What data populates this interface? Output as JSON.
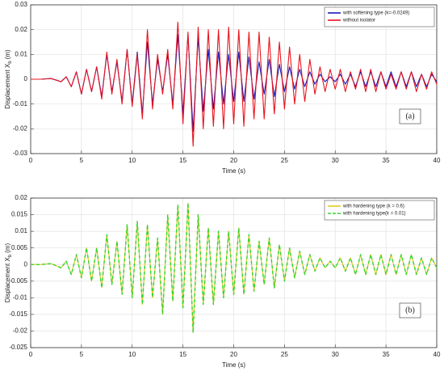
{
  "chart_data": [
    {
      "type": "line",
      "xlabel": "Time (s)",
      "ylabel": {
        "text": "Displacement X",
        "sub": "b",
        "unit": "(m)"
      },
      "annotation": "(a)",
      "xlim": [
        0,
        40
      ],
      "xticks": [
        0,
        5,
        10,
        15,
        20,
        25,
        30,
        35,
        40
      ],
      "ylim": [
        -0.03,
        0.03
      ],
      "yticks": [
        -0.03,
        -0.02,
        -0.01,
        0,
        0.01,
        0.02,
        0.03
      ],
      "grid": true,
      "legend": "upper right",
      "x": [
        0,
        1,
        2,
        3,
        3.5,
        4,
        4.5,
        5,
        5.5,
        6,
        6.5,
        7,
        7.5,
        8,
        8.5,
        9,
        9.5,
        10,
        10.5,
        11,
        11.5,
        12,
        12.5,
        13,
        13.5,
        14,
        14.5,
        15,
        15.5,
        16,
        16.5,
        17,
        17.5,
        18,
        18.5,
        19,
        19.5,
        20,
        20.5,
        21,
        21.5,
        22,
        22.5,
        23,
        23.5,
        24,
        24.5,
        25,
        25.5,
        26,
        26.5,
        27,
        27.5,
        28,
        28.5,
        29,
        29.5,
        30,
        30.5,
        31,
        31.5,
        32,
        32.5,
        33,
        33.5,
        34,
        34.5,
        35,
        35.5,
        36,
        36.5,
        37,
        37.5,
        38,
        38.5,
        39,
        39.5,
        40
      ],
      "series": [
        {
          "name": "with softening type (k=-0.0249)",
          "color": "#1a1ab8",
          "linestyle": "solid",
          "values": [
            0,
            0,
            0.0003,
            -0.001,
            0.001,
            -0.003,
            0.003,
            -0.006,
            0.004,
            -0.005,
            0.005,
            -0.007,
            0.01,
            -0.005,
            0.007,
            -0.009,
            0.012,
            -0.01,
            0.011,
            -0.014,
            0.015,
            -0.01,
            0.008,
            -0.005,
            0.01,
            -0.01,
            0.018,
            -0.014,
            0.018,
            -0.021,
            0.017,
            -0.013,
            0.012,
            -0.012,
            0.011,
            -0.01,
            0.01,
            -0.009,
            0.011,
            -0.009,
            0.009,
            -0.008,
            0.007,
            -0.006,
            0.008,
            -0.007,
            0.006,
            -0.005,
            0.005,
            -0.004,
            0.004,
            -0.003,
            0.003,
            -0.002,
            0.002,
            -0.001,
            0.001,
            -0.001,
            0.002,
            -0.002,
            0.002,
            -0.003,
            0.003,
            -0.003,
            0.003,
            -0.003,
            0.003,
            -0.003,
            0.003,
            -0.003,
            0.003,
            -0.003,
            0.003,
            -0.003,
            0.002,
            -0.003,
            0.002,
            -0.001
          ]
        },
        {
          "name": "without isolator",
          "color": "#e8141e",
          "linestyle": "solid",
          "values": [
            0,
            0,
            0.0003,
            -0.001,
            0.001,
            -0.003,
            0.003,
            -0.006,
            0.004,
            -0.005,
            0.005,
            -0.008,
            0.011,
            -0.006,
            0.008,
            -0.01,
            0.012,
            -0.011,
            0.01,
            -0.016,
            0.02,
            -0.012,
            0.01,
            -0.006,
            0.012,
            -0.012,
            0.023,
            -0.018,
            0.019,
            -0.027,
            0.021,
            -0.02,
            0.02,
            -0.019,
            0.02,
            -0.02,
            0.021,
            -0.018,
            0.02,
            -0.019,
            0.019,
            -0.016,
            0.019,
            -0.016,
            0.017,
            -0.014,
            0.015,
            -0.012,
            0.013,
            -0.01,
            0.01,
            -0.009,
            0.008,
            -0.006,
            0.005,
            -0.005,
            0.004,
            -0.004,
            0.004,
            -0.005,
            0.003,
            -0.004,
            0.004,
            -0.005,
            0.004,
            -0.005,
            0.003,
            -0.004,
            0.002,
            -0.004,
            0.003,
            -0.004,
            0.003,
            -0.005,
            0.002,
            -0.004,
            0.003,
            -0.002
          ]
        }
      ]
    },
    {
      "type": "line",
      "xlabel": "Time (s)",
      "ylabel": {
        "text": "Displacement X",
        "sub": "b",
        "unit": "(m)"
      },
      "annotation": "(b)",
      "xlim": [
        0,
        40
      ],
      "xticks": [
        0,
        5,
        10,
        15,
        20,
        25,
        30,
        35,
        40
      ],
      "ylim": [
        -0.025,
        0.02
      ],
      "yticks": [
        -0.025,
        -0.02,
        -0.015,
        -0.01,
        -0.005,
        0,
        0.005,
        0.01,
        0.015,
        0.02
      ],
      "grid": true,
      "legend": "upper right",
      "x": [
        0,
        1,
        2,
        3,
        3.5,
        4,
        4.5,
        5,
        5.5,
        6,
        6.5,
        7,
        7.5,
        8,
        8.5,
        9,
        9.5,
        10,
        10.5,
        11,
        11.5,
        12,
        12.5,
        13,
        13.5,
        14,
        14.5,
        15,
        15.5,
        16,
        16.5,
        17,
        17.5,
        18,
        18.5,
        19,
        19.5,
        20,
        20.5,
        21,
        21.5,
        22,
        22.5,
        23,
        23.5,
        24,
        24.5,
        25,
        25.5,
        26,
        26.5,
        27,
        27.5,
        28,
        28.5,
        29,
        29.5,
        30,
        30.5,
        31,
        31.5,
        32,
        32.5,
        33,
        33.5,
        34,
        34.5,
        35,
        35.5,
        36,
        36.5,
        37,
        37.5,
        38,
        38.5,
        39,
        39.5,
        40
      ],
      "series": [
        {
          "name": "with hardening type (k = 0.6)",
          "color": "#e6c81e",
          "linestyle": "solid",
          "values": [
            0,
            0,
            0.0003,
            -0.001,
            0.001,
            -0.003,
            0.003,
            -0.004,
            0.005,
            -0.005,
            0.005,
            -0.007,
            0.009,
            -0.006,
            0.007,
            -0.009,
            0.012,
            -0.01,
            0.013,
            -0.012,
            0.012,
            -0.01,
            0.008,
            -0.015,
            0.015,
            -0.011,
            0.018,
            -0.013,
            0.0185,
            -0.0205,
            0.015,
            -0.012,
            0.011,
            -0.012,
            0.01,
            -0.01,
            0.01,
            -0.009,
            0.011,
            -0.009,
            0.009,
            -0.008,
            0.007,
            -0.006,
            0.008,
            -0.007,
            0.006,
            -0.005,
            0.005,
            -0.004,
            0.004,
            -0.003,
            0.003,
            -0.002,
            0.002,
            -0.001,
            0.001,
            -0.001,
            0.002,
            -0.002,
            0.002,
            -0.003,
            0.003,
            -0.003,
            0.003,
            -0.003,
            0.003,
            -0.003,
            0.003,
            -0.003,
            0.003,
            -0.003,
            0.003,
            -0.003,
            0.002,
            -0.003,
            0.002,
            -0.001
          ]
        },
        {
          "name": "with hardening type(k = 0.01)",
          "color": "#33d433",
          "linestyle": "dashed",
          "values": [
            0,
            0,
            0.0003,
            -0.001,
            0.001,
            -0.003,
            0.003,
            -0.004,
            0.005,
            -0.005,
            0.005,
            -0.007,
            0.009,
            -0.006,
            0.007,
            -0.009,
            0.012,
            -0.01,
            0.013,
            -0.012,
            0.012,
            -0.01,
            0.008,
            -0.015,
            0.015,
            -0.011,
            0.018,
            -0.013,
            0.0185,
            -0.0205,
            0.015,
            -0.012,
            0.011,
            -0.012,
            0.01,
            -0.01,
            0.01,
            -0.009,
            0.011,
            -0.009,
            0.009,
            -0.008,
            0.007,
            -0.006,
            0.008,
            -0.007,
            0.006,
            -0.005,
            0.005,
            -0.004,
            0.004,
            -0.003,
            0.003,
            -0.002,
            0.002,
            -0.001,
            0.001,
            -0.001,
            0.002,
            -0.002,
            0.002,
            -0.003,
            0.003,
            -0.003,
            0.003,
            -0.003,
            0.003,
            -0.003,
            0.003,
            -0.003,
            0.003,
            -0.003,
            0.003,
            -0.003,
            0.002,
            -0.003,
            0.002,
            -0.001
          ]
        }
      ]
    }
  ]
}
